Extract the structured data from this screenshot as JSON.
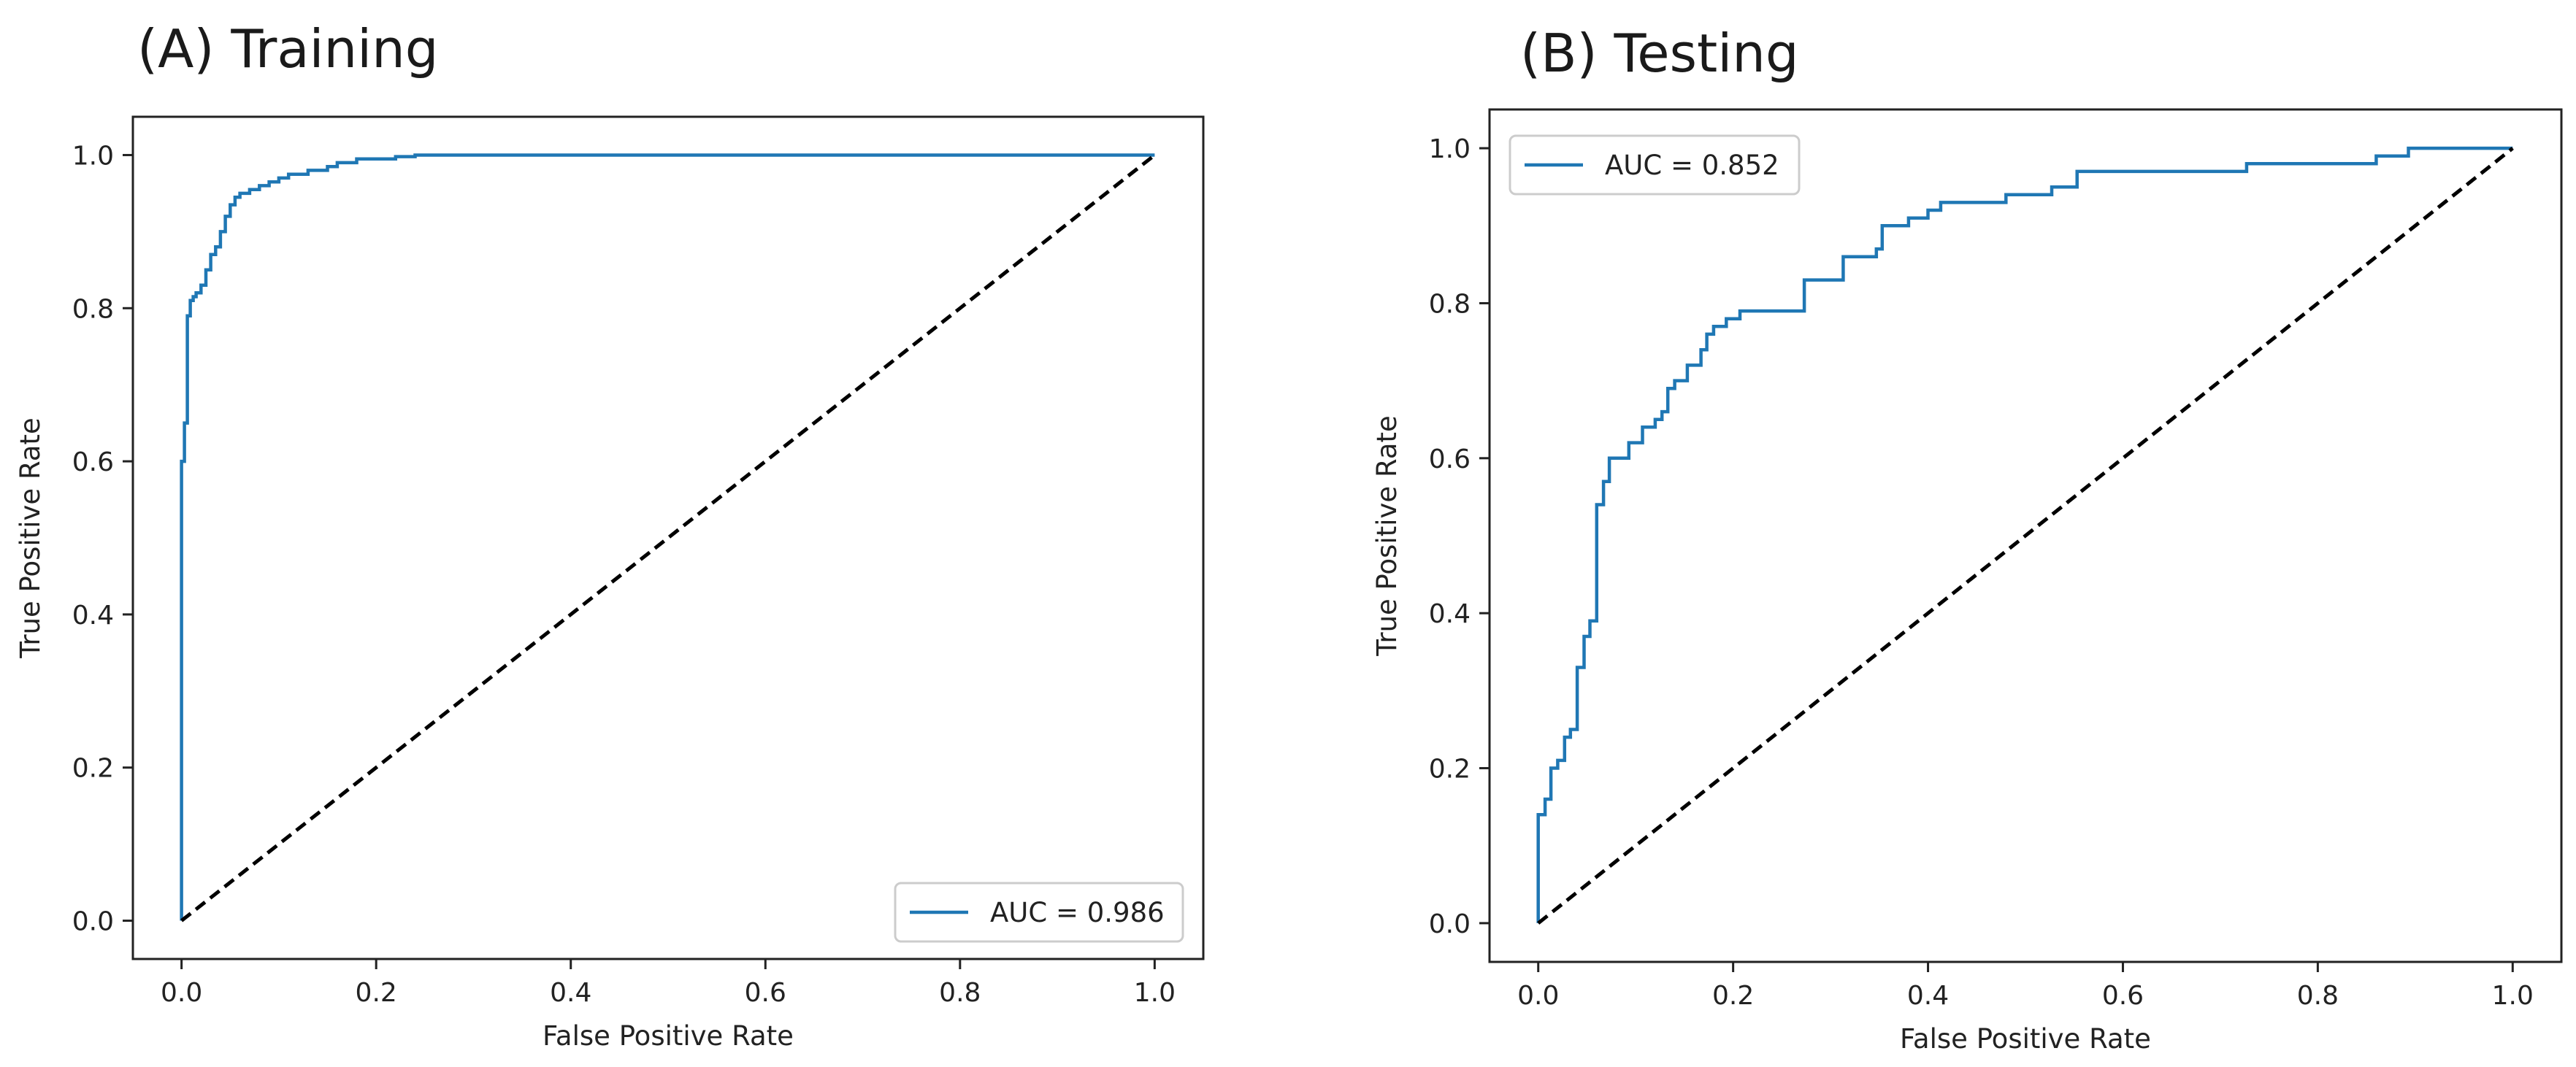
{
  "chart_data": [
    {
      "type": "line",
      "title": "(A) Training",
      "xlabel": "False Positive Rate",
      "ylabel": "True Positive Rate",
      "xlim": [
        -0.05,
        1.05
      ],
      "ylim": [
        -0.05,
        1.05
      ],
      "xticks": [
        0.0,
        0.2,
        0.4,
        0.6,
        0.8,
        1.0
      ],
      "yticks": [
        0.0,
        0.2,
        0.4,
        0.6,
        0.8,
        1.0
      ],
      "legend_position": "lower-right",
      "grid": false,
      "series": [
        {
          "name": "AUC = 0.986",
          "color": "#1f77b4",
          "style": "solid",
          "in_legend": true,
          "x": [
            0.0,
            0.0,
            0.003,
            0.003,
            0.006,
            0.006,
            0.009,
            0.009,
            0.012,
            0.012,
            0.015,
            0.015,
            0.02,
            0.02,
            0.025,
            0.025,
            0.03,
            0.03,
            0.035,
            0.035,
            0.04,
            0.04,
            0.045,
            0.045,
            0.05,
            0.05,
            0.055,
            0.055,
            0.06,
            0.06,
            0.07,
            0.07,
            0.08,
            0.08,
            0.09,
            0.09,
            0.1,
            0.1,
            0.11,
            0.11,
            0.13,
            0.13,
            0.15,
            0.15,
            0.16,
            0.16,
            0.18,
            0.18,
            0.22,
            0.22,
            0.24,
            0.24,
            1.0
          ],
          "y": [
            0.0,
            0.6,
            0.6,
            0.65,
            0.65,
            0.79,
            0.79,
            0.81,
            0.81,
            0.815,
            0.815,
            0.82,
            0.82,
            0.83,
            0.83,
            0.85,
            0.85,
            0.87,
            0.87,
            0.88,
            0.88,
            0.9,
            0.9,
            0.92,
            0.92,
            0.935,
            0.935,
            0.945,
            0.945,
            0.95,
            0.95,
            0.955,
            0.955,
            0.96,
            0.96,
            0.965,
            0.965,
            0.97,
            0.97,
            0.975,
            0.975,
            0.98,
            0.98,
            0.985,
            0.985,
            0.99,
            0.99,
            0.995,
            0.995,
            0.998,
            0.998,
            1.0,
            1.0
          ]
        },
        {
          "name": "chance",
          "color": "#000000",
          "style": "dashed",
          "in_legend": false,
          "x": [
            0.0,
            1.0
          ],
          "y": [
            0.0,
            1.0
          ]
        }
      ]
    },
    {
      "type": "line",
      "title": "(B) Testing",
      "xlabel": "False Positive Rate",
      "ylabel": "True Positive Rate",
      "xlim": [
        -0.05,
        1.05
      ],
      "ylim": [
        -0.05,
        1.05
      ],
      "xticks": [
        0.0,
        0.2,
        0.4,
        0.6,
        0.8,
        1.0
      ],
      "yticks": [
        0.0,
        0.2,
        0.4,
        0.6,
        0.8,
        1.0
      ],
      "legend_position": "upper-left",
      "grid": false,
      "series": [
        {
          "name": "AUC = 0.852",
          "color": "#1f77b4",
          "style": "solid",
          "in_legend": true,
          "x": [
            0.0,
            0.0,
            0.007,
            0.007,
            0.013,
            0.013,
            0.02,
            0.02,
            0.027,
            0.027,
            0.033,
            0.033,
            0.04,
            0.04,
            0.047,
            0.047,
            0.053,
            0.053,
            0.06,
            0.06,
            0.067,
            0.067,
            0.073,
            0.073,
            0.093,
            0.093,
            0.107,
            0.107,
            0.12,
            0.12,
            0.127,
            0.127,
            0.133,
            0.133,
            0.14,
            0.14,
            0.153,
            0.153,
            0.167,
            0.167,
            0.173,
            0.173,
            0.18,
            0.18,
            0.193,
            0.193,
            0.2,
            0.2,
            0.207,
            0.207,
            0.24,
            0.24,
            0.273,
            0.273,
            0.287,
            0.287,
            0.313,
            0.313,
            0.327,
            0.327,
            0.347,
            0.347,
            0.353,
            0.353,
            0.38,
            0.38,
            0.4,
            0.4,
            0.413,
            0.413,
            0.433,
            0.433,
            0.48,
            0.48,
            0.527,
            0.527,
            0.553,
            0.553,
            0.727,
            0.727,
            0.86,
            0.86,
            0.893,
            0.893,
            0.973,
            0.973,
            1.0
          ],
          "y": [
            0.0,
            0.14,
            0.14,
            0.16,
            0.16,
            0.2,
            0.2,
            0.21,
            0.21,
            0.24,
            0.24,
            0.25,
            0.25,
            0.33,
            0.33,
            0.37,
            0.37,
            0.39,
            0.39,
            0.54,
            0.54,
            0.57,
            0.57,
            0.6,
            0.6,
            0.62,
            0.62,
            0.64,
            0.64,
            0.65,
            0.65,
            0.66,
            0.66,
            0.69,
            0.69,
            0.7,
            0.7,
            0.72,
            0.72,
            0.74,
            0.74,
            0.76,
            0.76,
            0.77,
            0.77,
            0.78,
            0.78,
            0.78,
            0.78,
            0.79,
            0.79,
            0.79,
            0.79,
            0.83,
            0.83,
            0.83,
            0.83,
            0.86,
            0.86,
            0.86,
            0.86,
            0.87,
            0.87,
            0.9,
            0.9,
            0.91,
            0.91,
            0.92,
            0.92,
            0.93,
            0.93,
            0.93,
            0.93,
            0.94,
            0.94,
            0.95,
            0.95,
            0.97,
            0.97,
            0.98,
            0.98,
            0.99,
            0.99,
            1.0,
            1.0,
            1.0,
            1.0
          ]
        },
        {
          "name": "chance",
          "color": "#000000",
          "style": "dashed",
          "in_legend": false,
          "x": [
            0.0,
            1.0
          ],
          "y": [
            0.0,
            1.0
          ]
        }
      ]
    }
  ]
}
